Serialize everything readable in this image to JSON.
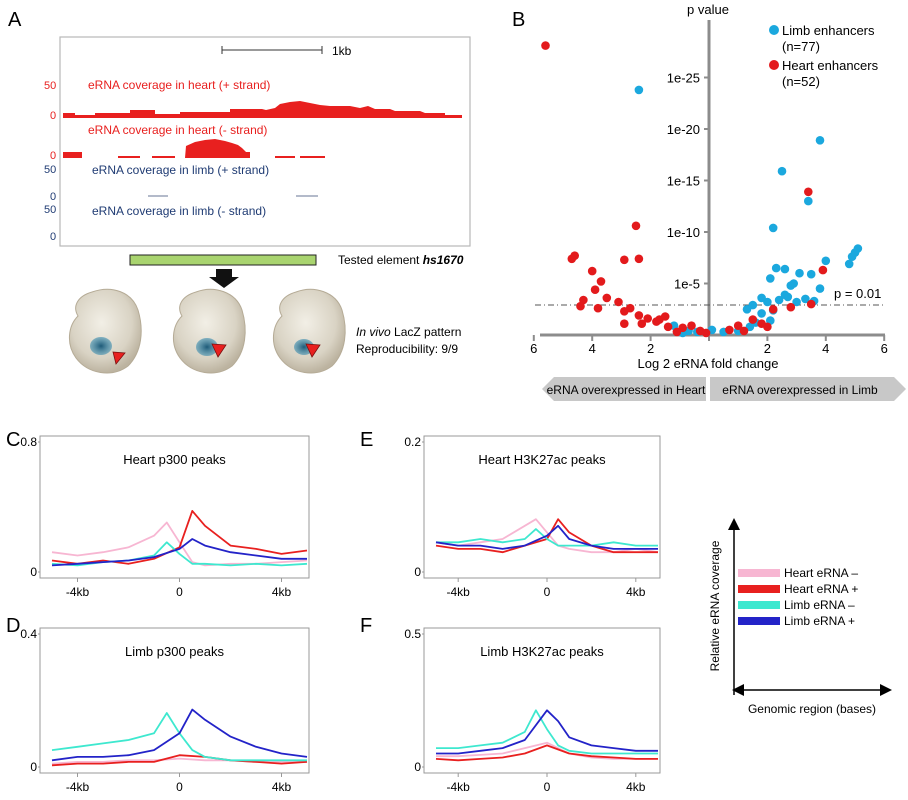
{
  "panel_letters": {
    "A": "A",
    "B": "B",
    "C": "C",
    "D": "D",
    "E": "E",
    "F": "F"
  },
  "panelA": {
    "scale_bar": "1kb",
    "tracks": [
      {
        "title": "eRNA coverage in heart (+ strand)",
        "ymax": "50",
        "ymin": "0",
        "color": "#e8201f"
      },
      {
        "title": "eRNA coverage in heart (- strand)",
        "ymax": "50",
        "ymin": "0",
        "color": "#e8201f"
      },
      {
        "title": "eRNA coverage in limb (+ strand)",
        "ymax": "50",
        "ymin": "0",
        "color": "#1f3b73"
      },
      {
        "title": "eRNA coverage in limb (- strand)",
        "ymax": "50",
        "ymin": "0",
        "color": "#1f3b73"
      }
    ],
    "tested_element_prefix": "Tested element ",
    "tested_element_name": "hs1670",
    "lacz_italic": "In vivo",
    "lacz_rest": " LacZ pattern",
    "reproducibility": "Reproducibility: 9/9"
  },
  "chart_data": [
    {
      "id": "B",
      "type": "scatter",
      "ylabel": "p value",
      "xlabel": "Log 2 eRNA fold change",
      "x_ticks": [
        "6",
        "4",
        "2",
        "",
        "2",
        "4",
        "6"
      ],
      "y_ticks": [
        "1e-25",
        "1e-20",
        "1e-15",
        "1e-10",
        "1e-5"
      ],
      "threshold_label": "p = 0.01",
      "threshold_neglog10p": 2,
      "arrow_left": "eRNA overexpressed in Heart",
      "arrow_right": "eRNA overexpressed in Limb",
      "series": [
        {
          "name": "Limb enhancers",
          "count_label": "(n=77)",
          "color": "#1ba8de",
          "points": [
            [
              -2.4,
              23.8
            ],
            [
              3.8,
              18.9
            ],
            [
              2.5,
              15.9
            ],
            [
              3.4,
              13.0
            ],
            [
              2.2,
              10.4
            ],
            [
              4.0,
              7.2
            ],
            [
              5.1,
              8.4
            ],
            [
              5.0,
              8.0
            ],
            [
              4.9,
              7.6
            ],
            [
              4.8,
              6.9
            ],
            [
              2.3,
              6.5
            ],
            [
              2.6,
              6.4
            ],
            [
              3.1,
              6.0
            ],
            [
              3.5,
              5.9
            ],
            [
              2.1,
              5.5
            ],
            [
              2.9,
              5.0
            ],
            [
              3.8,
              4.5
            ],
            [
              2.8,
              4.8
            ],
            [
              2.4,
              3.4
            ],
            [
              2.0,
              3.2
            ],
            [
              1.8,
              3.6
            ],
            [
              1.5,
              2.9
            ],
            [
              1.3,
              2.5
            ],
            [
              2.7,
              3.7
            ],
            [
              3.3,
              3.5
            ],
            [
              2.6,
              3.9
            ],
            [
              3.0,
              3.2
            ],
            [
              1.8,
              2.1
            ],
            [
              2.2,
              2.4
            ],
            [
              3.6,
              3.3
            ],
            [
              2.1,
              1.4
            ],
            [
              1.6,
              1.2
            ],
            [
              1.4,
              0.8
            ],
            [
              1.0,
              0.4
            ],
            [
              0.5,
              0.3
            ],
            [
              0.1,
              0.5
            ],
            [
              -0.4,
              0.3
            ],
            [
              -0.7,
              0.4
            ],
            [
              -1.2,
              0.9
            ],
            [
              -0.9,
              0.2
            ]
          ]
        },
        {
          "name": "Heart enhancers",
          "count_label": "(n=52)",
          "color": "#e31a1c",
          "points": [
            [
              -5.6,
              28.1
            ],
            [
              -2.5,
              10.6
            ],
            [
              -4.6,
              7.7
            ],
            [
              -4.7,
              7.4
            ],
            [
              -2.9,
              7.3
            ],
            [
              -2.4,
              7.4
            ],
            [
              -4.0,
              6.2
            ],
            [
              -3.7,
              5.2
            ],
            [
              -3.9,
              4.4
            ],
            [
              -3.5,
              3.6
            ],
            [
              -3.1,
              3.2
            ],
            [
              -4.3,
              3.4
            ],
            [
              -4.4,
              2.8
            ],
            [
              -3.8,
              2.6
            ],
            [
              -2.7,
              2.6
            ],
            [
              -2.9,
              2.3
            ],
            [
              -2.4,
              1.9
            ],
            [
              -2.1,
              1.6
            ],
            [
              -1.7,
              1.5
            ],
            [
              -1.5,
              1.8
            ],
            [
              -2.9,
              1.1
            ],
            [
              -2.3,
              1.1
            ],
            [
              -1.4,
              0.8
            ],
            [
              -1.8,
              1.3
            ],
            [
              -0.9,
              0.7
            ],
            [
              -0.6,
              0.9
            ],
            [
              -0.3,
              0.4
            ],
            [
              -0.1,
              0.2
            ],
            [
              -1.1,
              0.3
            ],
            [
              0.7,
              0.5
            ],
            [
              1.0,
              0.9
            ],
            [
              1.2,
              0.4
            ],
            [
              1.8,
              1.1
            ],
            [
              2.0,
              0.8
            ],
            [
              3.4,
              13.9
            ],
            [
              3.9,
              6.3
            ],
            [
              3.5,
              3.0
            ],
            [
              2.2,
              2.5
            ],
            [
              1.5,
              1.5
            ],
            [
              2.8,
              2.7
            ]
          ]
        }
      ]
    },
    {
      "id": "C",
      "type": "line",
      "title": "Heart p300 peaks",
      "y_ticks": [
        "0.8",
        "0"
      ],
      "ylim": [
        0,
        0.8
      ],
      "x_ticks": [
        "-4kb",
        "0",
        "4kb"
      ],
      "xlim": [
        -5,
        5
      ],
      "series": [
        {
          "name": "Heart eRNA –",
          "color": "#f7b6d2",
          "x": [
            -5,
            -4,
            -3,
            -2,
            -1,
            -0.5,
            0,
            0.5,
            1,
            2,
            3,
            4,
            5
          ],
          "y": [
            0.12,
            0.1,
            0.12,
            0.15,
            0.22,
            0.3,
            0.18,
            0.06,
            0.04,
            0.05,
            0.05,
            0.06,
            0.07
          ]
        },
        {
          "name": "Heart eRNA +",
          "color": "#e8201f",
          "x": [
            -5,
            -4,
            -3,
            -2,
            -1,
            0,
            0.5,
            1,
            2,
            3,
            4,
            5
          ],
          "y": [
            0.07,
            0.05,
            0.07,
            0.05,
            0.08,
            0.15,
            0.37,
            0.28,
            0.16,
            0.14,
            0.11,
            0.13
          ]
        },
        {
          "name": "Limb eRNA –",
          "color": "#3ee8cf",
          "x": [
            -5,
            -4,
            -3,
            -2,
            -1,
            -0.5,
            0,
            0.5,
            1,
            2,
            3,
            4,
            5
          ],
          "y": [
            0.05,
            0.04,
            0.06,
            0.07,
            0.1,
            0.18,
            0.11,
            0.05,
            0.05,
            0.04,
            0.05,
            0.04,
            0.05
          ]
        },
        {
          "name": "Limb eRNA +",
          "color": "#2323c8",
          "x": [
            -5,
            -4,
            -3,
            -2,
            -1,
            0,
            0.5,
            1,
            2,
            3,
            4,
            5
          ],
          "y": [
            0.04,
            0.05,
            0.06,
            0.07,
            0.09,
            0.14,
            0.2,
            0.16,
            0.12,
            0.1,
            0.08,
            0.08
          ]
        }
      ]
    },
    {
      "id": "E",
      "type": "line",
      "title": "Heart H3K27ac peaks",
      "y_ticks": [
        "0.2",
        "0"
      ],
      "ylim": [
        0,
        0.2
      ],
      "x_ticks": [
        "-4kb",
        "0",
        "4kb"
      ],
      "xlim": [
        -5,
        5
      ],
      "series": [
        {
          "name": "Heart eRNA –",
          "color": "#f7b6d2",
          "x": [
            -5,
            -4,
            -3,
            -2,
            -1,
            -0.5,
            0,
            0.5,
            1,
            2,
            3,
            4,
            5
          ],
          "y": [
            0.045,
            0.04,
            0.045,
            0.05,
            0.07,
            0.08,
            0.06,
            0.04,
            0.035,
            0.03,
            0.03,
            0.035,
            0.03
          ]
        },
        {
          "name": "Heart eRNA +",
          "color": "#e8201f",
          "x": [
            -5,
            -4,
            -3,
            -2,
            -1,
            0,
            0.5,
            1,
            2,
            3,
            4,
            5
          ],
          "y": [
            0.04,
            0.035,
            0.035,
            0.03,
            0.04,
            0.05,
            0.08,
            0.06,
            0.04,
            0.03,
            0.03,
            0.03
          ]
        },
        {
          "name": "Limb eRNA –",
          "color": "#3ee8cf",
          "x": [
            -5,
            -4,
            -3,
            -2,
            -1,
            -0.5,
            0,
            0.5,
            1,
            2,
            3,
            4,
            5
          ],
          "y": [
            0.045,
            0.045,
            0.05,
            0.045,
            0.05,
            0.065,
            0.05,
            0.04,
            0.04,
            0.04,
            0.045,
            0.04,
            0.04
          ]
        },
        {
          "name": "Limb eRNA +",
          "color": "#2323c8",
          "x": [
            -5,
            -4,
            -3,
            -2,
            -1,
            0,
            0.5,
            1,
            2,
            3,
            4,
            5
          ],
          "y": [
            0.045,
            0.04,
            0.04,
            0.035,
            0.04,
            0.055,
            0.07,
            0.05,
            0.04,
            0.035,
            0.035,
            0.035
          ]
        }
      ]
    },
    {
      "id": "D",
      "type": "line",
      "title": "Limb p300 peaks",
      "y_ticks": [
        "0.4",
        "0"
      ],
      "ylim": [
        0,
        0.4
      ],
      "x_ticks": [
        "-4kb",
        "0",
        "4kb"
      ],
      "xlim": [
        -5,
        5
      ],
      "series": [
        {
          "name": "Heart eRNA –",
          "color": "#f7b6d2",
          "x": [
            -5,
            -4,
            -3,
            -2,
            -1,
            0,
            1,
            2,
            3,
            4,
            5
          ],
          "y": [
            0.01,
            0.015,
            0.015,
            0.02,
            0.02,
            0.025,
            0.02,
            0.02,
            0.015,
            0.015,
            0.015
          ]
        },
        {
          "name": "Heart eRNA +",
          "color": "#e8201f",
          "x": [
            -5,
            -4,
            -3,
            -2,
            -1,
            0,
            1,
            2,
            3,
            4,
            5
          ],
          "y": [
            0.005,
            0.01,
            0.01,
            0.015,
            0.015,
            0.035,
            0.03,
            0.02,
            0.015,
            0.01,
            0.015
          ]
        },
        {
          "name": "Limb eRNA –",
          "color": "#3ee8cf",
          "x": [
            -5,
            -4,
            -3,
            -2,
            -1,
            -0.5,
            0,
            0.5,
            1,
            2,
            3,
            4,
            5
          ],
          "y": [
            0.05,
            0.06,
            0.07,
            0.08,
            0.1,
            0.16,
            0.1,
            0.05,
            0.03,
            0.02,
            0.02,
            0.02,
            0.02
          ]
        },
        {
          "name": "Limb eRNA +",
          "color": "#2323c8",
          "x": [
            -5,
            -4,
            -3,
            -2,
            -1,
            0,
            0.5,
            1,
            2,
            3,
            4,
            5
          ],
          "y": [
            0.02,
            0.03,
            0.03,
            0.035,
            0.05,
            0.1,
            0.17,
            0.14,
            0.09,
            0.06,
            0.04,
            0.03
          ]
        }
      ]
    },
    {
      "id": "F",
      "type": "line",
      "title": "Limb H3K27ac peaks",
      "y_ticks": [
        "0.5",
        "0"
      ],
      "ylim": [
        0,
        0.5
      ],
      "x_ticks": [
        "-4kb",
        "0",
        "4kb"
      ],
      "xlim": [
        -5,
        5
      ],
      "series": [
        {
          "name": "Heart eRNA –",
          "color": "#f7b6d2",
          "x": [
            -5,
            -4,
            -3,
            -2,
            -1,
            0,
            1,
            2,
            3,
            4,
            5
          ],
          "y": [
            0.04,
            0.04,
            0.045,
            0.05,
            0.07,
            0.09,
            0.05,
            0.035,
            0.03,
            0.03,
            0.03
          ]
        },
        {
          "name": "Heart eRNA +",
          "color": "#e8201f",
          "x": [
            -5,
            -4,
            -3,
            -2,
            -1,
            0,
            1,
            2,
            3,
            4,
            5
          ],
          "y": [
            0.03,
            0.025,
            0.03,
            0.035,
            0.05,
            0.08,
            0.05,
            0.04,
            0.035,
            0.03,
            0.03
          ]
        },
        {
          "name": "Limb eRNA –",
          "color": "#3ee8cf",
          "x": [
            -5,
            -4,
            -3,
            -2,
            -1,
            -0.5,
            0,
            0.5,
            1,
            2,
            3,
            4,
            5
          ],
          "y": [
            0.07,
            0.07,
            0.08,
            0.09,
            0.13,
            0.21,
            0.14,
            0.08,
            0.06,
            0.05,
            0.05,
            0.05,
            0.05
          ]
        },
        {
          "name": "Limb eRNA +",
          "color": "#2323c8",
          "x": [
            -5,
            -4,
            -3,
            -2,
            -1,
            0,
            0.5,
            1,
            2,
            3,
            4,
            5
          ],
          "y": [
            0.05,
            0.05,
            0.06,
            0.07,
            0.1,
            0.21,
            0.17,
            0.11,
            0.08,
            0.07,
            0.06,
            0.06
          ]
        }
      ]
    }
  ],
  "legend": {
    "y_axis_label": "Relative eRNA coverage",
    "x_axis_label": "Genomic region (bases)",
    "items": [
      {
        "label": "Heart eRNA –",
        "color": "#f7b6d2"
      },
      {
        "label": "Heart eRNA +",
        "color": "#e8201f"
      },
      {
        "label": "Limb eRNA –",
        "color": "#3ee8cf"
      },
      {
        "label": "Limb eRNA +",
        "color": "#2323c8"
      }
    ]
  }
}
